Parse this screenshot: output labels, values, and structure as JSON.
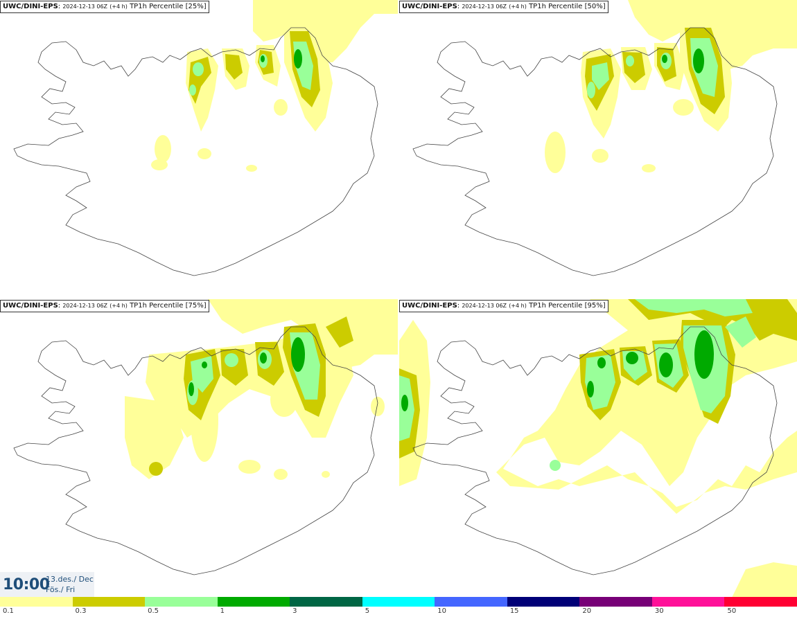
{
  "panels": [
    {
      "model": "UWC/DINI-EPS",
      "init": "2024-12-13 06Z",
      "lead": "(+4 h)",
      "field": "TP1h Percentile [25%]"
    },
    {
      "model": "UWC/DINI-EPS",
      "init": "2024-12-13 06Z",
      "lead": "(+4 h)",
      "field": "TP1h Percentile [50%]"
    },
    {
      "model": "UWC/DINI-EPS",
      "init": "2024-12-13 06Z",
      "lead": "(+4 h)",
      "field": "TP1h Percentile [75%]"
    },
    {
      "model": "UWC/DINI-EPS",
      "init": "2024-12-13 06Z",
      "lead": "(+4 h)",
      "field": "TP1h Percentile [95%]"
    }
  ],
  "valid_time": {
    "time": "10:00",
    "date": "13.des./ Dec",
    "weekday": "Fös./ Fri"
  },
  "legend": {
    "colors": [
      "#ffff99",
      "#cccc00",
      "#99ff99",
      "#00aa00",
      "#006644",
      "#00ffff",
      "#4466ff",
      "#000077",
      "#770077",
      "#ff1199",
      "#ff0033"
    ],
    "ticks": [
      "0.1",
      "0.3",
      "0.5",
      "1",
      "3",
      "5",
      "10",
      "15",
      "20",
      "30",
      "50"
    ]
  }
}
